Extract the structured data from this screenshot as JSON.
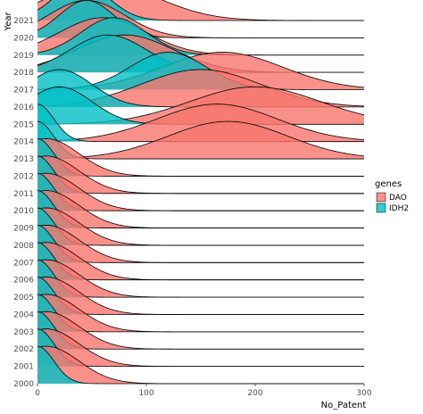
{
  "chart_data": {
    "type": "ridgeline",
    "xlabel": "No_Patent",
    "ylabel": "Year",
    "xlim": [
      0,
      300
    ],
    "x_ticks": [
      0,
      100,
      200,
      300
    ],
    "grid": false,
    "legend": {
      "title": "genes",
      "placement": "right",
      "entries": [
        {
          "name": "DAO",
          "color": "#F8766D"
        },
        {
          "name": "IDH2",
          "color": "#00BFC4"
        }
      ]
    },
    "categories": [
      "2000",
      "2001",
      "2002",
      "2003",
      "2004",
      "2005",
      "2006",
      "2007",
      "2008",
      "2009",
      "2010",
      "2011",
      "2012",
      "2013",
      "2014",
      "2015",
      "2016",
      "2017",
      "2018",
      "2019",
      "2020",
      "2021"
    ],
    "series": [
      {
        "name": "DAO",
        "color": "#F8766D",
        "peak_x": [
          8,
          8,
          8,
          8,
          8,
          8,
          8,
          8,
          8,
          8,
          8,
          8,
          8,
          175,
          165,
          200,
          150,
          170,
          80,
          60,
          45,
          60
        ],
        "spread": [
          30,
          30,
          30,
          30,
          30,
          30,
          30,
          30,
          30,
          30,
          30,
          30,
          30,
          55,
          55,
          60,
          55,
          55,
          45,
          40,
          35,
          50
        ]
      },
      {
        "name": "IDH2",
        "color": "#00BFC4",
        "peak_x": [
          0,
          0,
          0,
          0,
          0,
          0,
          0,
          0,
          0,
          0,
          0,
          0,
          0,
          0,
          0,
          20,
          20,
          120,
          65,
          70,
          45,
          40
        ],
        "spread": [
          15,
          15,
          15,
          15,
          15,
          15,
          15,
          15,
          15,
          15,
          15,
          15,
          15,
          15,
          15,
          30,
          30,
          35,
          35,
          30,
          25,
          25
        ]
      }
    ]
  }
}
